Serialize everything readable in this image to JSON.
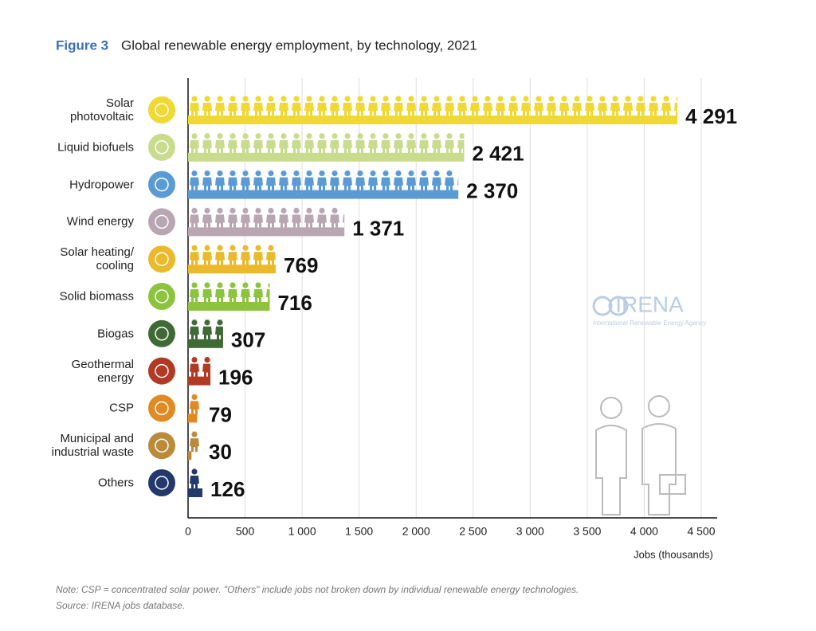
{
  "chart_data": {
    "type": "bar",
    "figure_label": "Figure 3",
    "title": "Global renewable energy employment, by technology, 2021",
    "categories": [
      "Solar\nphotovoltaic",
      "Liquid biofuels",
      "Hydropower",
      "Wind energy",
      "Solar heating/\ncooling",
      "Solid biomass",
      "Biogas",
      "Geothermal\nenergy",
      "CSP",
      "Municipal and\nindustrial waste",
      "Others"
    ],
    "values": [
      4291,
      2421,
      2370,
      1371,
      769,
      716,
      307,
      196,
      79,
      30,
      126
    ],
    "value_labels": [
      "4 291",
      "2 421",
      "2 370",
      "1 371",
      "769",
      "716",
      "307",
      "196",
      "79",
      "30",
      "126"
    ],
    "colors": [
      "#f0d932",
      "#c9dc8e",
      "#5b9bd5",
      "#b8a6b2",
      "#ebb92c",
      "#8cc43f",
      "#3f6a35",
      "#b13a25",
      "#e08a23",
      "#b98b3b",
      "#24396b"
    ],
    "xlim": [
      0,
      4500
    ],
    "xticks": [
      0,
      500,
      {
        "value": 1000,
        "label": "1 000"
      },
      {
        "value": 1500,
        "label": "1 500"
      },
      {
        "value": 2000,
        "label": "2 000"
      },
      {
        "value": 2500,
        "label": "2 500"
      },
      {
        "value": 3000,
        "label": "3 000"
      },
      {
        "value": 3500,
        "label": "3 500"
      },
      {
        "value": 4000,
        "label": "4 000"
      },
      {
        "value": 4500,
        "label": "4 500"
      }
    ],
    "x_label": "Jobs (thousands)",
    "grid": true,
    "logo": {
      "name": "IRENA",
      "subtitle": "International Renewable Energy Agency"
    },
    "note": "Note: CSP = concentrated solar power. \"Others\" include jobs not broken down by individual renewable energy technologies.",
    "source": "Source: IRENA jobs database."
  }
}
